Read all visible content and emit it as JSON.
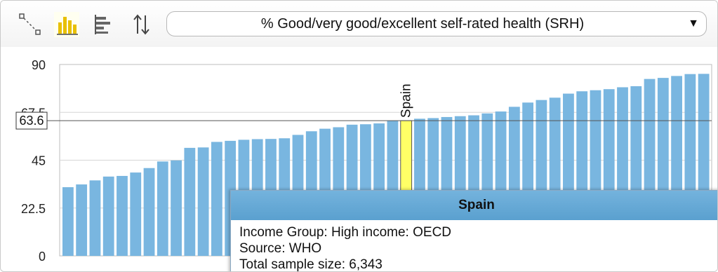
{
  "toolbar": {
    "tools": [
      {
        "name": "expand-icon"
      },
      {
        "name": "bar-chart-icon",
        "active": true
      },
      {
        "name": "horizontal-bars-icon"
      },
      {
        "name": "sort-icon"
      }
    ],
    "indicator_label": "% Good/very good/excellent self-rated health (SRH)",
    "dropdown_caret": "▼"
  },
  "colors": {
    "bar": "#79b6e0",
    "highlight_bar": "#ffff66",
    "highlight_border": "#555555",
    "tooltip_header": "#66a9d6"
  },
  "chart_data": {
    "type": "bar",
    "title": "",
    "xlabel": "",
    "ylabel": "",
    "ylim": [
      0,
      90
    ],
    "yticks": [
      "90",
      "67.5",
      "45",
      "22.5",
      "0"
    ],
    "grid": true,
    "values": [
      32.3,
      33.6,
      35.5,
      37.3,
      37.6,
      39.2,
      41.3,
      44.4,
      44.9,
      50.8,
      51.0,
      53.6,
      54.1,
      54.6,
      54.9,
      55.0,
      55.3,
      56.9,
      58.6,
      59.8,
      60.5,
      61.7,
      61.9,
      62.3,
      63.6,
      63.6,
      64.5,
      64.8,
      65.3,
      65.7,
      66.1,
      67.0,
      67.9,
      70.1,
      72.1,
      73.3,
      74.4,
      76.3,
      77.4,
      77.9,
      78.4,
      79.3,
      79.8,
      83.2,
      83.7,
      84.6,
      85.5,
      85.6
    ],
    "highlight": {
      "index": 25,
      "label": "Spain",
      "value": "63.6"
    }
  },
  "tooltip": {
    "title": "Spain",
    "lines": [
      "Income Group: High income: OECD",
      "Source: WHO",
      "Total sample size: 6,343"
    ]
  }
}
